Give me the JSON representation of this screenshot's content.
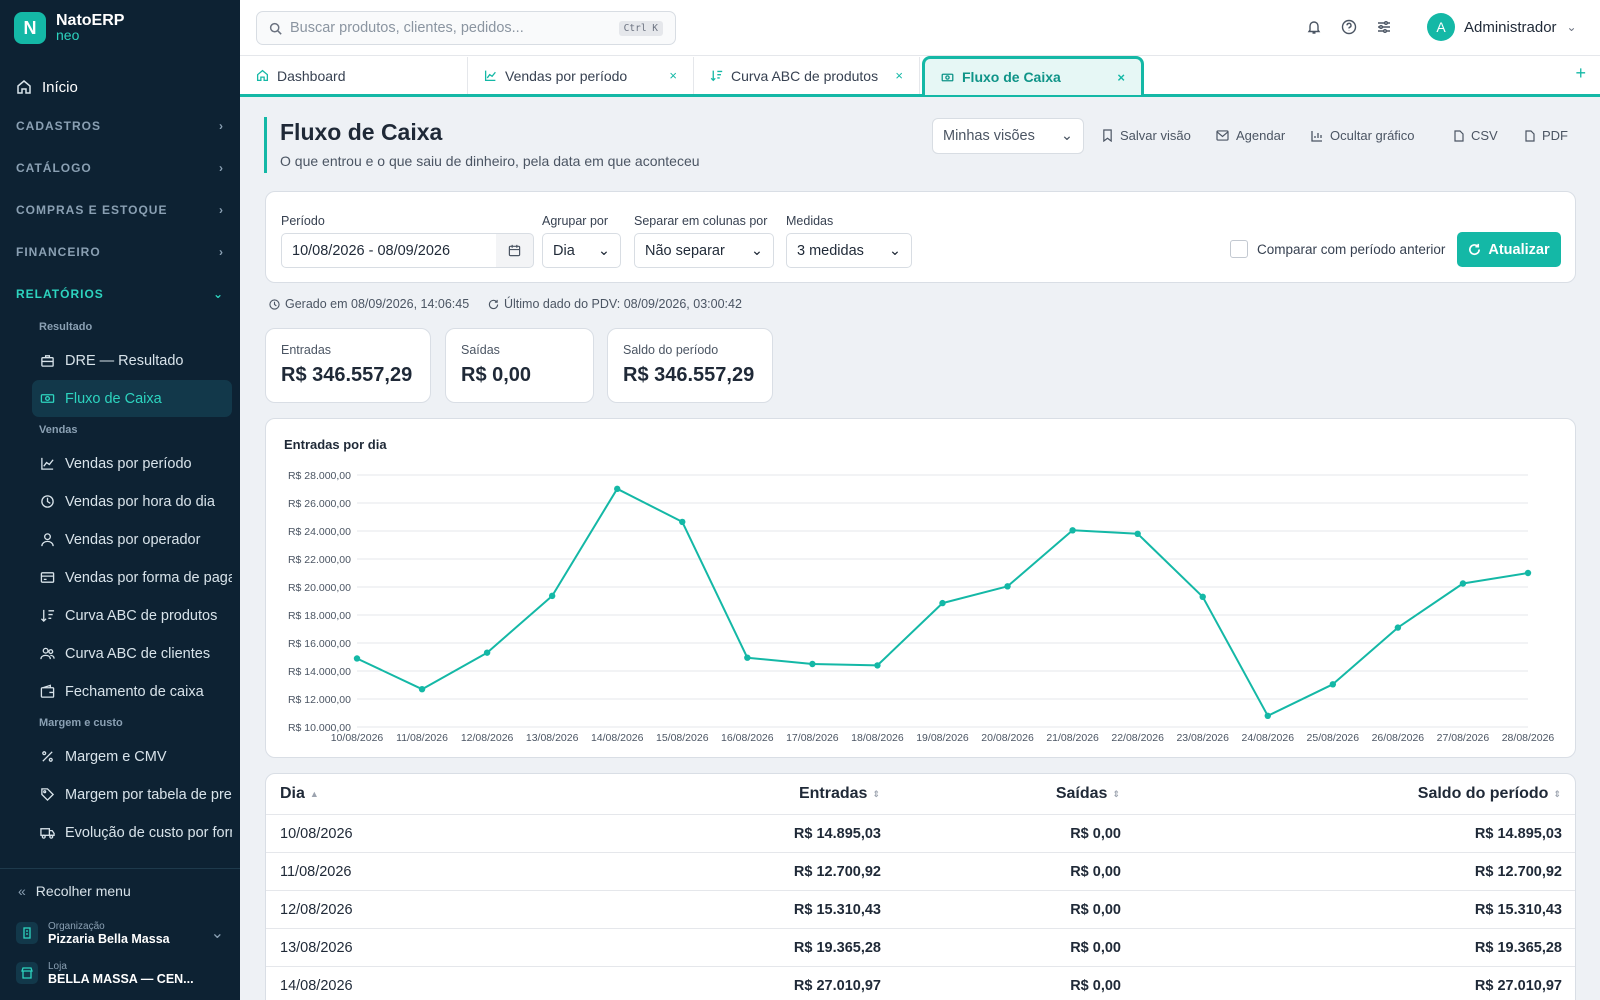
{
  "app": {
    "logo_letter": "N",
    "name": "NatoERP",
    "subname": "neo",
    "accent": "#14b8a6",
    "sidebar_bg": "#0d2233"
  },
  "sidebar": {
    "home": "Início",
    "sections": [
      "CADASTROS",
      "CATÁLOGO",
      "COMPRAS E ESTOQUE",
      "FINANCEIRO",
      "RELATÓRIOS"
    ],
    "groups": [
      "Resultado",
      "Vendas",
      "Margem e custo"
    ],
    "items": [
      "DRE — Resultado",
      "Fluxo de Caixa",
      "Vendas por período",
      "Vendas por hora do dia",
      "Vendas por operador",
      "Vendas por forma de pagamento",
      "Curva ABC de produtos",
      "Curva ABC de clientes",
      "Fechamento de caixa",
      "Margem e CMV",
      "Margem por tabela de preço",
      "Evolução de custo por fornecedor"
    ],
    "collapse": "Recolher menu",
    "org_label": "Organização",
    "org_value": "Pizzaria Bella Massa",
    "store_label": "Loja",
    "store_value": "BELLA MASSA — CEN..."
  },
  "topbar": {
    "search_placeholder": "Buscar produtos, clientes, pedidos...",
    "shortcut": "Ctrl K",
    "user_initial": "A",
    "user_name": "Administrador"
  },
  "tabs": [
    "Dashboard",
    "Vendas por período",
    "Curva ABC de produtos",
    "Fluxo de Caixa"
  ],
  "page": {
    "title": "Fluxo de Caixa",
    "subtitle": "O que entrou e o que saiu de dinheiro, pela data em que aconteceu"
  },
  "actions": {
    "views": "Minhas visões",
    "save": "Salvar visão",
    "schedule": "Agendar",
    "hide_chart": "Ocultar gráfico",
    "csv": "CSV",
    "pdf": "PDF"
  },
  "filters": {
    "period_label": "Período",
    "period_value": "10/08/2026 - 08/09/2026",
    "group_label": "Agrupar por",
    "group_value": "Dia",
    "split_label": "Separar em colunas por",
    "split_value": "Não separar",
    "measures_label": "Medidas",
    "measures_value": "3 medidas",
    "compare": "Comparar com período anterior",
    "update": "Atualizar"
  },
  "meta": {
    "generated": "Gerado em 08/09/2026, 14:06:45",
    "last_pdv": "Último dado do PDV: 08/09/2026, 03:00:42"
  },
  "kpis": [
    {
      "label": "Entradas",
      "value": "R$ 346.557,29"
    },
    {
      "label": "Saídas",
      "value": "R$ 0,00"
    },
    {
      "label": "Saldo do período",
      "value": "R$ 346.557,29"
    }
  ],
  "chart_data": {
    "type": "line",
    "title": "Entradas por dia",
    "x": [
      "10/08/2026",
      "11/08/2026",
      "12/08/2026",
      "13/08/2026",
      "14/08/2026",
      "15/08/2026",
      "16/08/2026",
      "17/08/2026",
      "18/08/2026",
      "19/08/2026",
      "20/08/2026",
      "21/08/2026",
      "22/08/2026",
      "23/08/2026",
      "24/08/2026",
      "25/08/2026",
      "26/08/2026",
      "27/08/2026",
      "28/08/2026"
    ],
    "series": [
      {
        "values": [
          14895.03,
          12700.92,
          15310.43,
          19365.28,
          27010.97,
          24650,
          14950,
          14500,
          14400,
          18850,
          20050,
          24050,
          23800,
          19300,
          10800,
          13050,
          17100,
          20250,
          21000
        ]
      }
    ],
    "ylim": [
      10000,
      28000
    ],
    "yticks": [
      "R$ 10.000,00",
      "R$ 12.000,00",
      "R$ 14.000,00",
      "R$ 16.000,00",
      "R$ 18.000,00",
      "R$ 20.000,00",
      "R$ 22.000,00",
      "R$ 24.000,00",
      "R$ 26.000,00",
      "R$ 28.000,00"
    ],
    "grid": true,
    "color": "#14b8a6"
  },
  "table": {
    "headers": [
      "Dia",
      "Entradas",
      "Saídas",
      "Saldo do período"
    ],
    "rows": [
      [
        "10/08/2026",
        "R$ 14.895,03",
        "R$ 0,00",
        "R$ 14.895,03"
      ],
      [
        "11/08/2026",
        "R$ 12.700,92",
        "R$ 0,00",
        "R$ 12.700,92"
      ],
      [
        "12/08/2026",
        "R$ 15.310,43",
        "R$ 0,00",
        "R$ 15.310,43"
      ],
      [
        "13/08/2026",
        "R$ 19.365,28",
        "R$ 0,00",
        "R$ 19.365,28"
      ],
      [
        "14/08/2026",
        "R$ 27.010,97",
        "R$ 0,00",
        "R$ 27.010,97"
      ]
    ]
  }
}
